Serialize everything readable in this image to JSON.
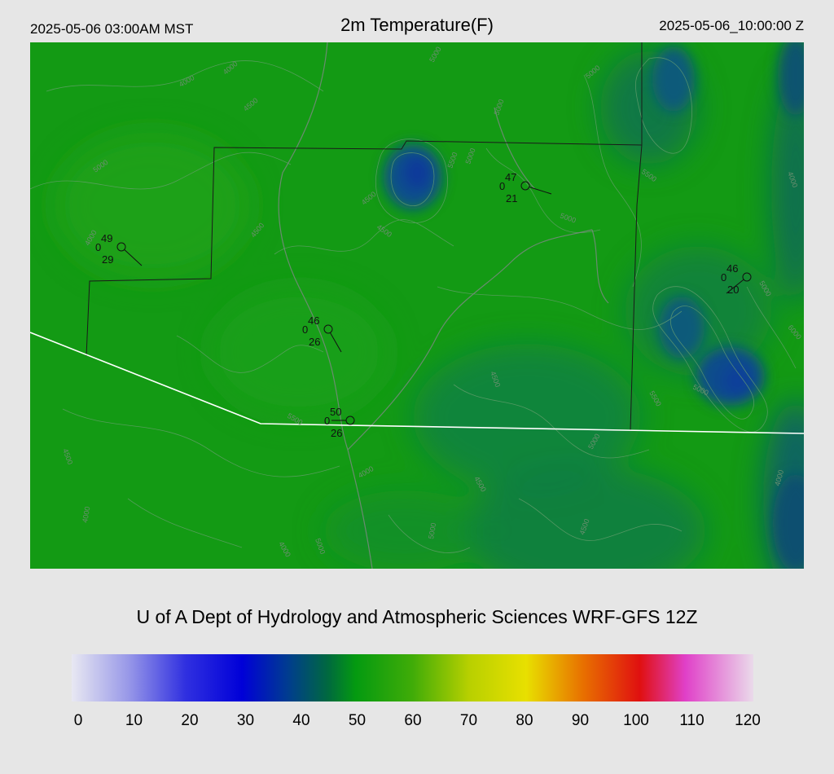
{
  "header": {
    "local_time": "2025-05-06 03:00AM MST",
    "title": "2m Temperature(F)",
    "utc_time": "2025-05-06_10:00:00 Z"
  },
  "credit": "U of A Dept of Hydrology and Atmospheric Sciences WRF-GFS 12Z",
  "colorbar": {
    "ticks": [
      "0",
      "10",
      "20",
      "30",
      "40",
      "50",
      "60",
      "70",
      "80",
      "90",
      "100",
      "110",
      "120"
    ],
    "stops": [
      {
        "v": 0,
        "c": "#e8e8f2"
      },
      {
        "v": 10,
        "c": "#9898e8"
      },
      {
        "v": 20,
        "c": "#3030e0"
      },
      {
        "v": 30,
        "c": "#0000d8"
      },
      {
        "v": 38,
        "c": "#003c90"
      },
      {
        "v": 45,
        "c": "#006840"
      },
      {
        "v": 50,
        "c": "#049a10"
      },
      {
        "v": 60,
        "c": "#40ac08"
      },
      {
        "v": 70,
        "c": "#b8d000"
      },
      {
        "v": 80,
        "c": "#e8e000"
      },
      {
        "v": 90,
        "c": "#e87000"
      },
      {
        "v": 100,
        "c": "#e01010"
      },
      {
        "v": 108,
        "c": "#e040c8"
      },
      {
        "v": 120,
        "c": "#eadaea"
      }
    ]
  },
  "stations": [
    {
      "temp": "49",
      "wind": "0",
      "dew": "29"
    },
    {
      "temp": "47",
      "wind": "0",
      "dew": "21"
    },
    {
      "temp": "46",
      "wind": "0",
      "dew": "26"
    },
    {
      "temp": "50",
      "wind": "0",
      "dew": "26"
    },
    {
      "temp": "46",
      "wind": "0",
      "dew": "20"
    }
  ],
  "contour_labels": [
    "4000",
    "4000",
    "4500",
    "5000",
    "4500",
    "5000",
    "5500",
    "5000",
    "5000",
    "5500",
    "4000",
    "4500",
    "5000",
    "4000",
    "4500",
    "5000",
    "4500",
    "5000",
    "5500",
    "6000",
    "5500",
    "4500",
    "5000",
    "4000",
    "4500",
    "4000",
    "4000",
    "5000",
    "5000",
    "4500",
    "4000",
    "5000"
  ]
}
